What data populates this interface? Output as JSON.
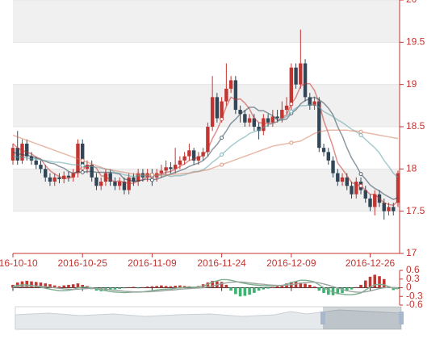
{
  "chart_data": {
    "type": "candlestick",
    "categories": [
      "2016-10-10",
      null,
      null,
      null,
      null,
      null,
      null,
      null,
      null,
      null,
      null,
      null,
      null,
      null,
      null,
      "2016-10-25",
      null,
      null,
      null,
      null,
      null,
      null,
      null,
      null,
      null,
      null,
      null,
      null,
      null,
      null,
      "2016-11-09",
      null,
      null,
      null,
      null,
      null,
      null,
      null,
      null,
      null,
      null,
      null,
      null,
      null,
      null,
      "2016-11-24",
      null,
      null,
      null,
      null,
      null,
      null,
      null,
      null,
      null,
      null,
      null,
      null,
      null,
      null,
      "2016-12-09",
      null,
      null,
      null,
      null,
      null,
      null,
      null,
      null,
      null,
      null,
      null,
      null,
      null,
      null,
      null,
      null,
      "2016-12-26",
      null,
      null,
      null,
      null,
      null,
      null
    ],
    "ohlc": [
      [
        18.1,
        18.25,
        18.05,
        18.3
      ],
      [
        18.25,
        18.1,
        18.05,
        18.45
      ],
      [
        18.1,
        18.3,
        18.06,
        18.35
      ],
      [
        18.3,
        18.15,
        18.1,
        18.35
      ],
      [
        18.15,
        18.1,
        18.05,
        18.2
      ],
      [
        18.1,
        18.05,
        18.0,
        18.15
      ],
      [
        18.05,
        18.0,
        17.95,
        18.1
      ],
      [
        18.0,
        17.9,
        17.85,
        18.05
      ],
      [
        17.9,
        17.85,
        17.8,
        17.95
      ],
      [
        17.85,
        17.9,
        17.8,
        17.95
      ],
      [
        17.9,
        17.88,
        17.83,
        17.95
      ],
      [
        17.88,
        17.92,
        17.83,
        17.97
      ],
      [
        17.92,
        17.9,
        17.85,
        17.97
      ],
      [
        17.9,
        17.95,
        17.85,
        18.0
      ],
      [
        17.95,
        18.3,
        17.9,
        18.35
      ],
      [
        18.3,
        18.0,
        17.95,
        18.35
      ],
      [
        18.0,
        18.05,
        17.95,
        18.1
      ],
      [
        18.05,
        17.9,
        17.85,
        18.1
      ],
      [
        17.9,
        17.8,
        17.75,
        17.95
      ],
      [
        17.8,
        17.85,
        17.75,
        17.9
      ],
      [
        17.85,
        17.95,
        17.8,
        18.0
      ],
      [
        17.95,
        17.85,
        17.8,
        18.0
      ],
      [
        17.85,
        17.8,
        17.75,
        17.9
      ],
      [
        17.8,
        17.85,
        17.75,
        17.9
      ],
      [
        17.85,
        17.75,
        17.7,
        17.9
      ],
      [
        17.75,
        17.9,
        17.7,
        17.95
      ],
      [
        17.9,
        17.85,
        17.8,
        17.95
      ],
      [
        17.85,
        17.95,
        17.8,
        18.0
      ],
      [
        17.95,
        17.9,
        17.85,
        18.0
      ],
      [
        17.9,
        17.95,
        17.85,
        18.0
      ],
      [
        17.95,
        17.9,
        17.8,
        18.0
      ],
      [
        17.9,
        17.95,
        17.85,
        18.0
      ],
      [
        17.95,
        17.98,
        17.9,
        18.05
      ],
      [
        17.98,
        18.02,
        17.93,
        18.1
      ],
      [
        18.02,
        18.0,
        17.95,
        18.08
      ],
      [
        18.0,
        18.05,
        17.95,
        18.25
      ],
      [
        18.05,
        18.1,
        18.0,
        18.15
      ],
      [
        18.1,
        18.15,
        18.05,
        18.2
      ],
      [
        18.15,
        18.22,
        18.1,
        18.3
      ],
      [
        18.22,
        18.1,
        18.05,
        18.25
      ],
      [
        18.1,
        18.15,
        18.05,
        18.2
      ],
      [
        18.15,
        18.2,
        18.1,
        18.25
      ],
      [
        18.2,
        18.5,
        18.15,
        18.55
      ],
      [
        18.5,
        18.85,
        18.45,
        19.1
      ],
      [
        18.85,
        18.6,
        18.55,
        18.9
      ],
      [
        18.6,
        18.8,
        18.55,
        18.85
      ],
      [
        18.8,
        18.95,
        18.75,
        19.25
      ],
      [
        18.95,
        19.05,
        18.9,
        19.1
      ],
      [
        19.05,
        18.7,
        18.65,
        19.1
      ],
      [
        18.7,
        18.65,
        18.55,
        18.75
      ],
      [
        18.65,
        18.55,
        18.5,
        18.7
      ],
      [
        18.55,
        18.6,
        18.5,
        18.65
      ],
      [
        18.6,
        18.5,
        18.45,
        18.65
      ],
      [
        18.5,
        18.45,
        18.35,
        18.55
      ],
      [
        18.45,
        18.6,
        18.4,
        18.65
      ],
      [
        18.6,
        18.55,
        18.5,
        18.65
      ],
      [
        18.55,
        18.62,
        18.5,
        18.7
      ],
      [
        18.62,
        18.6,
        18.55,
        18.7
      ],
      [
        18.6,
        18.7,
        18.55,
        18.8
      ],
      [
        18.7,
        18.75,
        18.65,
        18.85
      ],
      [
        18.75,
        19.2,
        18.7,
        19.25
      ],
      [
        19.2,
        19.0,
        18.95,
        19.25
      ],
      [
        19.0,
        19.25,
        18.95,
        19.65
      ],
      [
        19.25,
        18.85,
        18.8,
        19.3
      ],
      [
        18.85,
        18.75,
        18.7,
        18.9
      ],
      [
        18.75,
        18.8,
        18.7,
        18.85
      ],
      [
        18.8,
        18.25,
        18.2,
        18.85
      ],
      [
        18.25,
        18.2,
        18.15,
        18.3
      ],
      [
        18.2,
        18.1,
        18.05,
        18.25
      ],
      [
        18.1,
        17.95,
        17.9,
        18.15
      ],
      [
        17.95,
        17.85,
        17.8,
        18.0
      ],
      [
        17.85,
        17.9,
        17.8,
        17.95
      ],
      [
        17.9,
        17.8,
        17.75,
        17.95
      ],
      [
        17.8,
        17.7,
        17.65,
        17.85
      ],
      [
        17.7,
        17.85,
        17.65,
        17.9
      ],
      [
        17.85,
        17.75,
        17.7,
        17.9
      ],
      [
        17.75,
        17.65,
        17.6,
        17.8
      ],
      [
        17.65,
        17.55,
        17.5,
        17.7
      ],
      [
        17.55,
        17.7,
        17.45,
        17.75
      ],
      [
        17.7,
        17.6,
        17.55,
        17.75
      ],
      [
        17.6,
        17.5,
        17.4,
        17.65
      ],
      [
        17.5,
        17.55,
        17.45,
        17.6
      ],
      [
        17.55,
        17.5,
        17.45,
        17.6
      ],
      [
        17.6,
        17.95,
        17.55,
        17.98
      ]
    ],
    "up_color": "#c23531",
    "down_color": "#314656",
    "ylim": [
      17,
      20
    ],
    "yticks": [
      17,
      17.5,
      18,
      18.5,
      19,
      19.5,
      20
    ],
    "split_area_colors": [
      "#ffffff",
      "#f0f0f0"
    ],
    "axis_color": "#c23531",
    "lines": [
      {
        "color": "#c23531",
        "values": [
          18.3,
          18.25,
          18.22,
          18.2,
          18.18,
          18.14,
          18.12,
          18.04,
          17.98,
          17.94,
          17.91,
          17.89,
          17.89,
          17.91,
          17.99,
          18.01,
          18.04,
          18.04,
          18.01,
          17.92,
          17.91,
          17.87,
          17.85,
          17.86,
          17.84,
          17.83,
          17.83,
          17.86,
          17.87,
          17.91,
          17.91,
          17.93,
          17.94,
          17.96,
          17.97,
          18.0,
          18.03,
          18.06,
          18.1,
          18.12,
          18.14,
          18.16,
          18.23,
          18.36,
          18.46,
          18.59,
          18.74,
          18.85,
          18.82,
          18.83,
          18.78,
          18.71,
          18.6,
          18.55,
          18.54,
          18.54,
          18.54,
          18.56,
          18.61,
          18.64,
          18.77,
          18.85,
          18.98,
          19.01,
          19.01,
          18.93,
          18.78,
          18.57,
          18.42,
          18.26,
          18.07,
          18.0,
          17.92,
          17.84,
          17.82,
          17.8,
          17.75,
          17.7,
          17.7,
          17.65,
          17.6,
          17.58,
          17.57,
          17.62
        ]
      },
      {
        "color": "#2f4554",
        "values": [
          18.2,
          18.18,
          18.17,
          18.16,
          18.15,
          18.13,
          18.11,
          18.09,
          18.07,
          18.06,
          18.03,
          18.01,
          17.97,
          17.95,
          17.97,
          17.96,
          17.97,
          17.97,
          17.96,
          17.96,
          17.96,
          17.96,
          17.95,
          17.94,
          17.88,
          17.87,
          17.85,
          17.86,
          17.87,
          17.88,
          17.87,
          17.88,
          17.9,
          17.92,
          17.94,
          17.96,
          17.98,
          18.0,
          18.03,
          18.05,
          18.07,
          18.1,
          18.15,
          18.23,
          18.29,
          18.37,
          18.45,
          18.54,
          18.59,
          18.65,
          18.69,
          18.73,
          18.73,
          18.69,
          18.69,
          18.66,
          18.63,
          18.58,
          18.58,
          18.59,
          18.66,
          18.7,
          18.77,
          18.81,
          18.83,
          18.85,
          18.82,
          18.78,
          18.72,
          18.64,
          18.5,
          18.39,
          18.25,
          18.13,
          18.04,
          17.94,
          17.88,
          17.81,
          17.77,
          17.74,
          17.7,
          17.67,
          17.64,
          17.66
        ]
      },
      {
        "color": "#61a0a8",
        "values": [
          18.15,
          18.14,
          18.14,
          18.13,
          18.12,
          18.12,
          18.11,
          18.1,
          18.09,
          18.08,
          18.08,
          18.07,
          18.06,
          18.05,
          18.05,
          18.04,
          18.03,
          18.03,
          18.02,
          18.01,
          18.0,
          17.99,
          17.96,
          17.95,
          17.93,
          17.92,
          17.91,
          17.92,
          17.92,
          17.92,
          17.92,
          17.92,
          17.93,
          17.93,
          17.91,
          17.92,
          17.92,
          17.93,
          17.95,
          17.97,
          17.97,
          17.99,
          18.03,
          18.08,
          18.12,
          18.17,
          18.22,
          18.27,
          18.31,
          18.35,
          18.38,
          18.42,
          18.44,
          18.46,
          18.49,
          18.52,
          18.54,
          18.56,
          18.59,
          18.62,
          18.68,
          18.72,
          18.75,
          18.75,
          18.76,
          18.76,
          18.73,
          18.68,
          18.65,
          18.62,
          18.58,
          18.55,
          18.51,
          18.47,
          18.44,
          18.4,
          18.35,
          18.3,
          18.25,
          18.19,
          18.1,
          18.03,
          17.95,
          17.9
        ]
      },
      {
        "color": "#d48265",
        "values": [
          18.4,
          18.38,
          18.36,
          18.34,
          18.32,
          18.3,
          18.28,
          18.26,
          18.24,
          18.22,
          18.2,
          18.18,
          18.16,
          18.14,
          18.12,
          18.1,
          18.08,
          18.06,
          18.04,
          18.02,
          18.0,
          17.99,
          17.98,
          17.97,
          17.96,
          17.95,
          17.94,
          17.94,
          17.93,
          17.93,
          17.93,
          17.93,
          17.93,
          17.93,
          17.93,
          17.94,
          17.94,
          17.95,
          17.95,
          17.96,
          17.97,
          17.98,
          17.99,
          18.01,
          18.03,
          18.05,
          18.07,
          18.09,
          18.11,
          18.13,
          18.15,
          18.17,
          18.19,
          18.21,
          18.23,
          18.25,
          18.27,
          18.28,
          18.29,
          18.3,
          18.31,
          18.32,
          18.33,
          18.36,
          18.39,
          18.42,
          18.44,
          18.45,
          18.46,
          18.46,
          18.46,
          18.46,
          18.46,
          18.45,
          18.45,
          18.44,
          18.43,
          18.42,
          18.41,
          18.4,
          18.39,
          18.38,
          18.37,
          18.36
        ]
      }
    ],
    "macd": {
      "ylim": [
        -0.6,
        0.6
      ],
      "yticks": [
        0.6,
        0.3,
        0,
        -0.3,
        -0.6
      ],
      "up_color": "#c23531",
      "down_color": "#3cb371",
      "hist": [
        0.1,
        0.18,
        0.22,
        0.24,
        0.22,
        0.2,
        0.18,
        0.15,
        0.12,
        0.08,
        0.05,
        0.08,
        0.1,
        0.12,
        0.15,
        0.1,
        0.06,
        -0.05,
        -0.1,
        -0.12,
        -0.1,
        -0.08,
        -0.06,
        -0.04,
        -0.02,
        0.02,
        0.03,
        -0.02,
        0.02,
        0.04,
        0.05,
        0.06,
        0.08,
        0.06,
        0.05,
        0.07,
        0.08,
        0.06,
        0.05,
        0.04,
        0.06,
        0.12,
        0.18,
        0.24,
        0.22,
        0.2,
        0.1,
        -0.1,
        -0.22,
        -0.3,
        -0.28,
        -0.24,
        -0.18,
        -0.1,
        -0.06,
        -0.03,
        0.02,
        0.05,
        0.08,
        0.15,
        0.2,
        0.22,
        0.18,
        0.14,
        0.1,
        0.04,
        -0.1,
        -0.18,
        -0.24,
        -0.26,
        -0.22,
        -0.18,
        -0.12,
        -0.06,
        0.02,
        0.1,
        0.25,
        0.38,
        0.45,
        0.4,
        0.3,
        0.05,
        -0.08,
        -0.04
      ],
      "lines": [
        {
          "color": "#7fae8f",
          "values": [
            0.05,
            0.08,
            0.1,
            0.1,
            0.08,
            0.05,
            0.02,
            -0.02,
            -0.05,
            -0.08,
            -0.1,
            -0.1,
            -0.09,
            -0.06,
            0.0,
            0.02,
            0.02,
            0.0,
            -0.04,
            -0.08,
            -0.1,
            -0.13,
            -0.15,
            -0.16,
            -0.17,
            -0.16,
            -0.15,
            -0.15,
            -0.14,
            -0.12,
            -0.1,
            -0.08,
            -0.06,
            -0.05,
            -0.04,
            -0.02,
            0.0,
            0.01,
            0.02,
            0.02,
            0.03,
            0.06,
            0.12,
            0.2,
            0.24,
            0.28,
            0.28,
            0.26,
            0.22,
            0.18,
            0.15,
            0.12,
            0.1,
            0.08,
            0.07,
            0.06,
            0.06,
            0.07,
            0.08,
            0.12,
            0.18,
            0.22,
            0.26,
            0.26,
            0.24,
            0.2,
            0.1,
            0.0,
            -0.08,
            -0.15,
            -0.2,
            -0.22,
            -0.24,
            -0.24,
            -0.22,
            -0.18,
            -0.08,
            0.02,
            0.1,
            0.12,
            0.1,
            0.04,
            -0.02,
            -0.04
          ]
        },
        {
          "color": "#9aa5a0",
          "values": [
            0.02,
            0.03,
            0.04,
            0.05,
            0.06,
            0.06,
            0.05,
            0.04,
            0.02,
            0.0,
            -0.02,
            -0.04,
            -0.05,
            -0.06,
            -0.05,
            -0.04,
            -0.03,
            -0.02,
            -0.03,
            -0.04,
            -0.05,
            -0.07,
            -0.09,
            -0.1,
            -0.12,
            -0.13,
            -0.14,
            -0.14,
            -0.14,
            -0.14,
            -0.13,
            -0.12,
            -0.11,
            -0.09,
            -0.08,
            -0.07,
            -0.05,
            -0.04,
            -0.03,
            -0.02,
            -0.01,
            0.0,
            0.03,
            0.06,
            0.1,
            0.14,
            0.17,
            0.19,
            0.2,
            0.2,
            0.19,
            0.17,
            0.15,
            0.13,
            0.12,
            0.1,
            0.09,
            0.08,
            0.08,
            0.09,
            0.11,
            0.13,
            0.16,
            0.18,
            0.19,
            0.19,
            0.17,
            0.13,
            0.09,
            0.04,
            -0.01,
            -0.06,
            -0.1,
            -0.13,
            -0.15,
            -0.16,
            -0.14,
            -0.11,
            -0.07,
            -0.03,
            0.0,
            0.01,
            0.01,
            0.0
          ]
        }
      ]
    }
  }
}
